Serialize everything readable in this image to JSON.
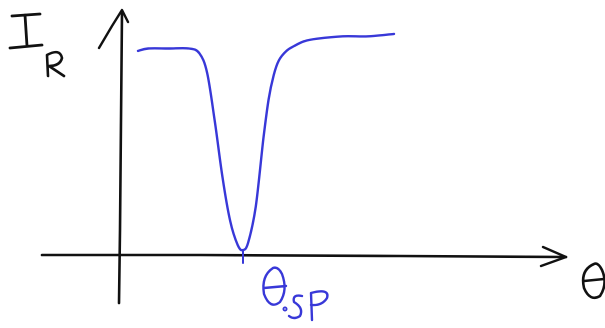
{
  "chart_data": {
    "type": "line",
    "title": "",
    "ylabel_main": "I",
    "ylabel_sub": "R",
    "xlabel": "θ",
    "annotation_main": "θ",
    "annotation_sub": "SP",
    "xlim": [
      0,
      10
    ],
    "ylim": [
      0,
      1
    ],
    "grid": false,
    "legend": "none",
    "series": [
      {
        "color": "#3838d8",
        "x": [
          0.0,
          0.4,
          1.2,
          2.0,
          2.4,
          2.7,
          3.0,
          3.3,
          3.6,
          3.9,
          4.1,
          4.3,
          4.6,
          4.9,
          5.1,
          5.3,
          5.5,
          5.8,
          6.1,
          6.5,
          7.0,
          8.0,
          9.0,
          10.0
        ],
        "y": [
          0.84,
          0.85,
          0.85,
          0.85,
          0.83,
          0.75,
          0.55,
          0.32,
          0.14,
          0.04,
          0.02,
          0.05,
          0.2,
          0.48,
          0.64,
          0.74,
          0.8,
          0.84,
          0.86,
          0.88,
          0.89,
          0.9,
          0.9,
          0.91
        ]
      }
    ],
    "axis_color": "#111111"
  }
}
